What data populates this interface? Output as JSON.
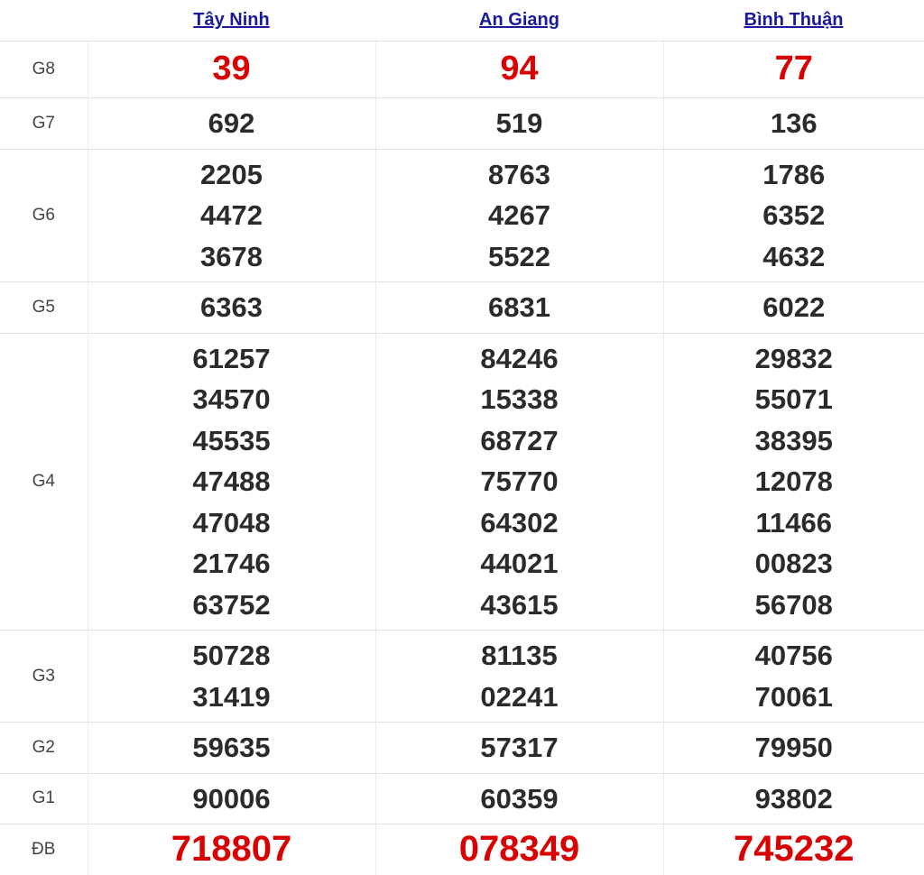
{
  "provinces": [
    "Tây Ninh",
    "An Giang",
    "Bình Thuận"
  ],
  "colors": {
    "link": "#1a1a9c",
    "highlight": "#d80000",
    "text": "#2b2b2b"
  },
  "prizes": [
    {
      "label": "G8",
      "highlight": true,
      "results": [
        [
          "39"
        ],
        [
          "94"
        ],
        [
          "77"
        ]
      ]
    },
    {
      "label": "G7",
      "highlight": false,
      "results": [
        [
          "692"
        ],
        [
          "519"
        ],
        [
          "136"
        ]
      ]
    },
    {
      "label": "G6",
      "highlight": false,
      "results": [
        [
          "2205",
          "4472",
          "3678"
        ],
        [
          "8763",
          "4267",
          "5522"
        ],
        [
          "1786",
          "6352",
          "4632"
        ]
      ]
    },
    {
      "label": "G5",
      "highlight": false,
      "results": [
        [
          "6363"
        ],
        [
          "6831"
        ],
        [
          "6022"
        ]
      ]
    },
    {
      "label": "G4",
      "highlight": false,
      "results": [
        [
          "61257",
          "34570",
          "45535",
          "47488",
          "47048",
          "21746",
          "63752"
        ],
        [
          "84246",
          "15338",
          "68727",
          "75770",
          "64302",
          "44021",
          "43615"
        ],
        [
          "29832",
          "55071",
          "38395",
          "12078",
          "11466",
          "00823",
          "56708"
        ]
      ]
    },
    {
      "label": "G3",
      "highlight": false,
      "results": [
        [
          "50728",
          "31419"
        ],
        [
          "81135",
          "02241"
        ],
        [
          "40756",
          "70061"
        ]
      ]
    },
    {
      "label": "G2",
      "highlight": false,
      "results": [
        [
          "59635"
        ],
        [
          "57317"
        ],
        [
          "79950"
        ]
      ]
    },
    {
      "label": "G1",
      "highlight": false,
      "results": [
        [
          "90006"
        ],
        [
          "60359"
        ],
        [
          "93802"
        ]
      ]
    },
    {
      "label": "ĐB",
      "highlight": true,
      "results": [
        [
          "718807"
        ],
        [
          "078349"
        ],
        [
          "745232"
        ]
      ]
    }
  ]
}
